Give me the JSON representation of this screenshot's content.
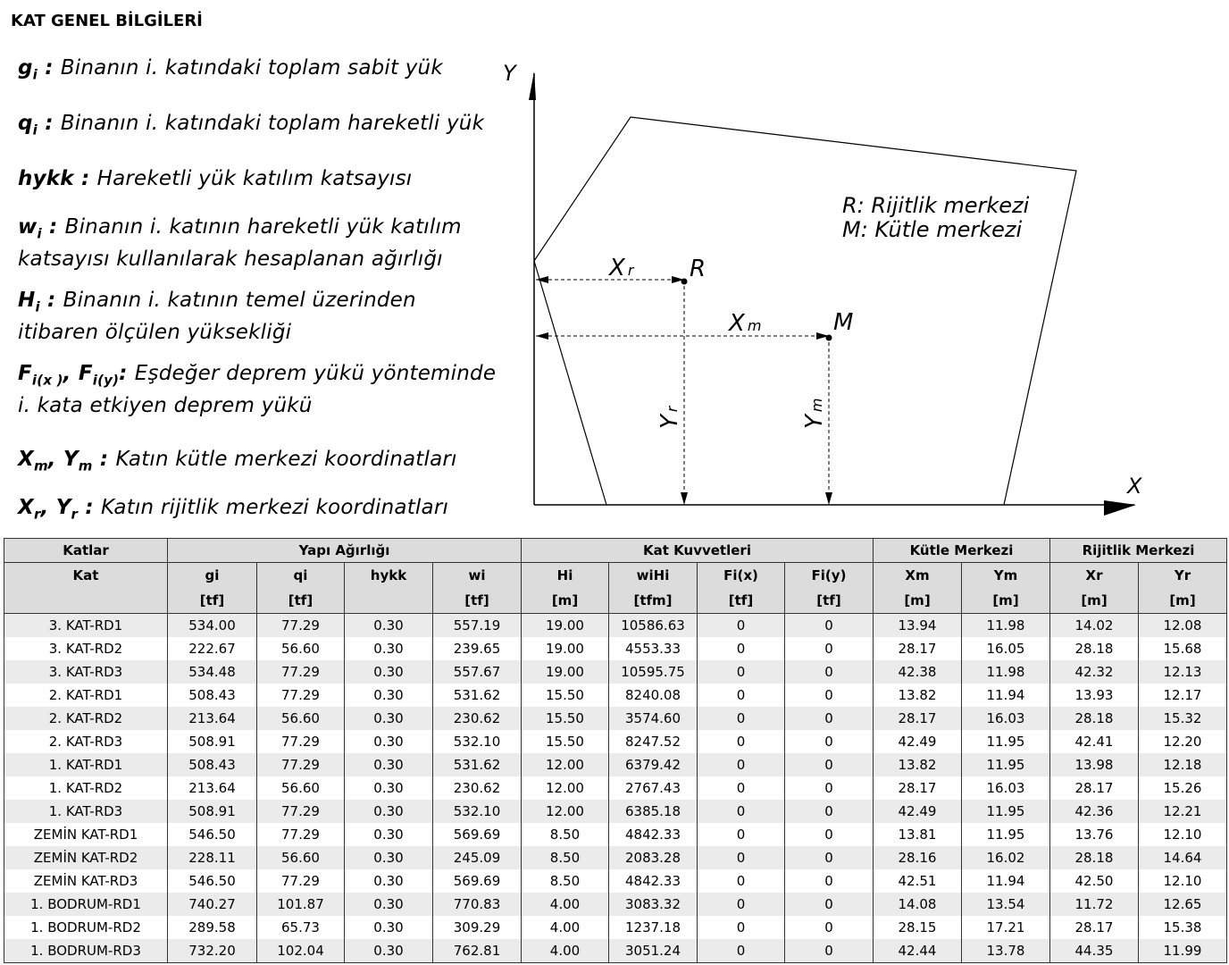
{
  "title": "KAT GENEL BİLGİLERİ",
  "definitions": [
    {
      "sym": "g",
      "sub": "i",
      "sep": " : ",
      "text": "Binanın i. katındaki toplam sabit yük"
    },
    {
      "sym": "q",
      "sub": "i",
      "sep": " : ",
      "text": "Binanın i. katındaki toplam hareketli yük"
    },
    {
      "sym": "hykk",
      "sub": "",
      "sep": " : ",
      "text": "Hareketli yük katılım katsayısı"
    },
    {
      "sym": "w",
      "sub": "i",
      "sep": " : ",
      "text": "Binanın i. katının hareketli yük katılım",
      "text2": "katsayısı kullanılarak hesaplanan ağırlığı"
    },
    {
      "sym": "H",
      "sub": "i",
      "sep": " : ",
      "text": "Binanın i. katının temel üzerinden",
      "text2": "itibaren ölçülen yüksekliği"
    },
    {
      "sym": "F",
      "sub": "i(x )",
      "sym2": ", F",
      "sub2": "i(y)",
      "sep": ": ",
      "text": "Eşdeğer deprem yükü yönteminde",
      "text2": "i. kata etkiyen deprem yükü"
    },
    {
      "sym": "X",
      "sub": "m",
      "sym2": ", Y",
      "sub2": "m",
      "sep": " : ",
      "text": "Katın kütle merkezi koordinatları"
    },
    {
      "sym": "X",
      "sub": "r",
      "sym2": ", Y",
      "sub2": "r",
      "sep": " : ",
      "text": "Katın rijitlik merkezi koordinatları"
    }
  ],
  "diagram": {
    "axis_y": "Y",
    "axis_x": "X",
    "legend_r": "R: Rijitlik merkezi",
    "legend_m": "M: Kütle merkezi",
    "point_r": "R",
    "point_m": "M",
    "xr": "X",
    "xr_sub": "r",
    "xm": "X",
    "xm_sub": "m",
    "yr": "Y",
    "yr_sub": "r",
    "ym": "Y",
    "ym_sub": "m"
  },
  "table": {
    "groups": [
      "Katlar",
      "Yapı Ağırlığı",
      "Kat Kuvvetleri",
      "Kütle Merkezi",
      "Rijitlik Merkezi"
    ],
    "columns": [
      {
        "name": "Kat",
        "unit": ""
      },
      {
        "name": "gi",
        "unit": "[tf]"
      },
      {
        "name": "qi",
        "unit": "[tf]"
      },
      {
        "name": "hykk",
        "unit": ""
      },
      {
        "name": "wi",
        "unit": "[tf]"
      },
      {
        "name": "Hi",
        "unit": "[m]"
      },
      {
        "name": "wiHi",
        "unit": "[tfm]"
      },
      {
        "name": "Fi(x)",
        "unit": "[tf]"
      },
      {
        "name": "Fi(y)",
        "unit": "[tf]"
      },
      {
        "name": "Xm",
        "unit": "[m]"
      },
      {
        "name": "Ym",
        "unit": "[m]"
      },
      {
        "name": "Xr",
        "unit": "[m]"
      },
      {
        "name": "Yr",
        "unit": "[m]"
      }
    ],
    "rows": [
      [
        "3. KAT-RD1",
        "534.00",
        "77.29",
        "0.30",
        "557.19",
        "19.00",
        "10586.63",
        "0",
        "0",
        "13.94",
        "11.98",
        "14.02",
        "12.08"
      ],
      [
        "3. KAT-RD2",
        "222.67",
        "56.60",
        "0.30",
        "239.65",
        "19.00",
        "4553.33",
        "0",
        "0",
        "28.17",
        "16.05",
        "28.18",
        "15.68"
      ],
      [
        "3. KAT-RD3",
        "534.48",
        "77.29",
        "0.30",
        "557.67",
        "19.00",
        "10595.75",
        "0",
        "0",
        "42.38",
        "11.98",
        "42.32",
        "12.13"
      ],
      [
        "2. KAT-RD1",
        "508.43",
        "77.29",
        "0.30",
        "531.62",
        "15.50",
        "8240.08",
        "0",
        "0",
        "13.82",
        "11.94",
        "13.93",
        "12.17"
      ],
      [
        "2. KAT-RD2",
        "213.64",
        "56.60",
        "0.30",
        "230.62",
        "15.50",
        "3574.60",
        "0",
        "0",
        "28.17",
        "16.03",
        "28.18",
        "15.32"
      ],
      [
        "2. KAT-RD3",
        "508.91",
        "77.29",
        "0.30",
        "532.10",
        "15.50",
        "8247.52",
        "0",
        "0",
        "42.49",
        "11.95",
        "42.41",
        "12.20"
      ],
      [
        "1. KAT-RD1",
        "508.43",
        "77.29",
        "0.30",
        "531.62",
        "12.00",
        "6379.42",
        "0",
        "0",
        "13.82",
        "11.95",
        "13.98",
        "12.18"
      ],
      [
        "1. KAT-RD2",
        "213.64",
        "56.60",
        "0.30",
        "230.62",
        "12.00",
        "2767.43",
        "0",
        "0",
        "28.17",
        "16.03",
        "28.17",
        "15.26"
      ],
      [
        "1. KAT-RD3",
        "508.91",
        "77.29",
        "0.30",
        "532.10",
        "12.00",
        "6385.18",
        "0",
        "0",
        "42.49",
        "11.95",
        "42.36",
        "12.21"
      ],
      [
        "ZEMİN KAT-RD1",
        "546.50",
        "77.29",
        "0.30",
        "569.69",
        "8.50",
        "4842.33",
        "0",
        "0",
        "13.81",
        "11.95",
        "13.76",
        "12.10"
      ],
      [
        "ZEMİN KAT-RD2",
        "228.11",
        "56.60",
        "0.30",
        "245.09",
        "8.50",
        "2083.28",
        "0",
        "0",
        "28.16",
        "16.02",
        "28.18",
        "14.64"
      ],
      [
        "ZEMİN KAT-RD3",
        "546.50",
        "77.29",
        "0.30",
        "569.69",
        "8.50",
        "4842.33",
        "0",
        "0",
        "42.51",
        "11.94",
        "42.50",
        "12.10"
      ],
      [
        "1. BODRUM-RD1",
        "740.27",
        "101.87",
        "0.30",
        "770.83",
        "4.00",
        "3083.32",
        "0",
        "0",
        "14.08",
        "13.54",
        "11.72",
        "12.65"
      ],
      [
        "1. BODRUM-RD2",
        "289.58",
        "65.73",
        "0.30",
        "309.29",
        "4.00",
        "1237.18",
        "0",
        "0",
        "28.15",
        "17.21",
        "28.17",
        "15.38"
      ],
      [
        "1. BODRUM-RD3",
        "732.20",
        "102.04",
        "0.30",
        "762.81",
        "4.00",
        "3051.24",
        "0",
        "0",
        "42.44",
        "13.78",
        "44.35",
        "11.99"
      ]
    ]
  }
}
